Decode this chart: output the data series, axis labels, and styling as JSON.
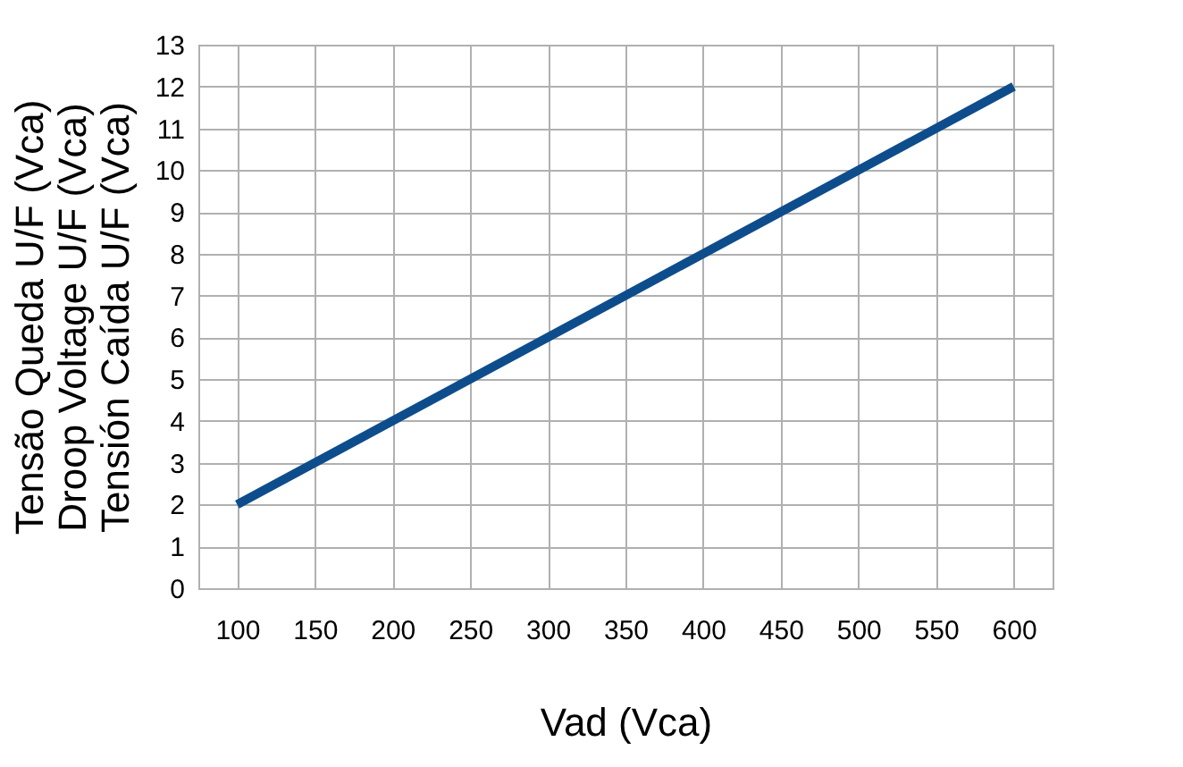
{
  "chart_data": {
    "type": "line",
    "xlabel": "Vad (Vca)",
    "ylabel": "Tensão Queda U/F (Vca)\nDroop Voltage U/F (Vca)\nTensión Caída U/F (Vca)",
    "categories": [
      "100",
      "150",
      "200",
      "250",
      "300",
      "350",
      "400",
      "450",
      "500",
      "550",
      "600"
    ],
    "series": [
      {
        "color": "#0e4d8c",
        "values": [
          2,
          3,
          4,
          5,
          6,
          7,
          8,
          9,
          10,
          11,
          12
        ]
      }
    ],
    "ylim": [
      0,
      13
    ],
    "yticks": [
      0,
      1,
      2,
      3,
      4,
      5,
      6,
      7,
      8,
      9,
      10,
      11,
      12,
      13
    ],
    "grid": true,
    "marker": "none",
    "line_style": "solid"
  }
}
